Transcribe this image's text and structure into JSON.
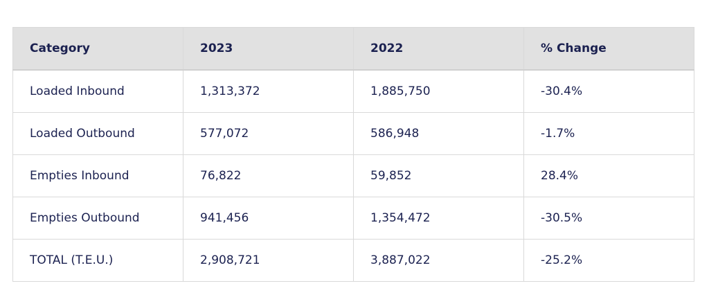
{
  "table": {
    "header": [
      "Category",
      "2023",
      "2022",
      "% Change"
    ],
    "rows": [
      [
        "Loaded Inbound",
        "1,313,372",
        "1,885,750",
        "-30.4%"
      ],
      [
        "Loaded Outbound",
        "577,072",
        "586,948",
        "-1.7%"
      ],
      [
        "Empties Inbound",
        "76,822",
        "59,852",
        "28.4%"
      ],
      [
        "Empties Outbound",
        "941,456",
        "1,354,472",
        "-30.5%"
      ],
      [
        "TOTAL (T.E.U.)",
        "2,908,721",
        "3,887,022",
        "-25.2%"
      ]
    ]
  }
}
